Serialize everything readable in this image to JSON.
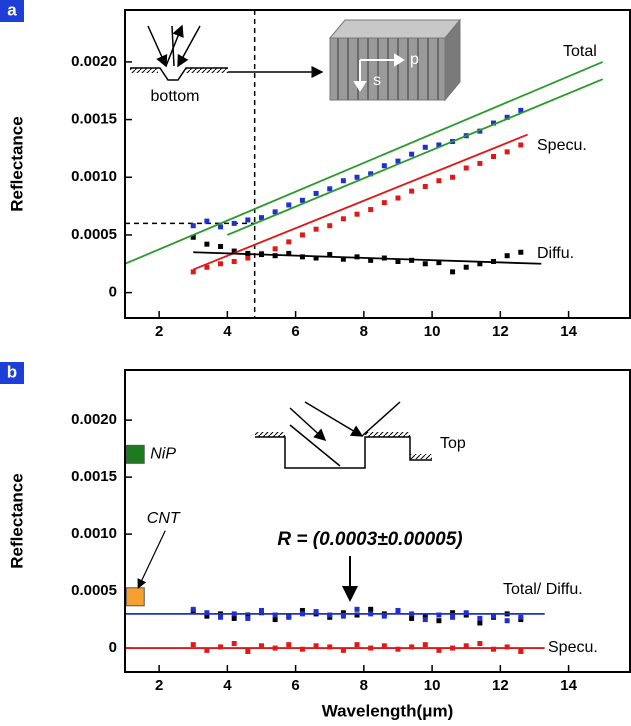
{
  "chart_data": [
    {
      "type": "scatter",
      "panel": "a",
      "ylabel": "Reflectance",
      "xlim": [
        1,
        15.8
      ],
      "ylim": [
        -0.00022,
        0.00245
      ],
      "xticks": [
        2,
        4,
        6,
        8,
        10,
        12,
        14
      ],
      "yticks": [
        0,
        {
          "value": 0.0005,
          "label": "0.0005"
        },
        {
          "value": 0.001,
          "label": "0.0010"
        },
        {
          "value": 0.0015,
          "label": "0.0015"
        },
        {
          "value": 0.002,
          "label": "0.0020"
        }
      ],
      "x": [
        3.0,
        3.4,
        3.8,
        4.2,
        4.6,
        5.0,
        5.4,
        5.8,
        6.2,
        6.6,
        7.0,
        7.4,
        7.8,
        8.2,
        8.6,
        9.0,
        9.4,
        9.8,
        10.2,
        10.6,
        11.0,
        11.4,
        11.8,
        12.2,
        12.6
      ],
      "series": [
        {
          "name": "Total",
          "color": "#1f2fd0",
          "values": [
            0.00058,
            0.00062,
            0.00057,
            0.0006,
            0.00063,
            0.00065,
            0.0007,
            0.00076,
            0.0008,
            0.00086,
            0.0009,
            0.00097,
            0.001,
            0.00103,
            0.0011,
            0.00114,
            0.0012,
            0.00126,
            0.00128,
            0.00131,
            0.00136,
            0.0014,
            0.00147,
            0.00152,
            0.00158
          ]
        },
        {
          "name": "Specu.",
          "color": "#e01818",
          "values": [
            0.00018,
            0.00022,
            0.00025,
            0.00027,
            0.0003,
            0.00034,
            0.00038,
            0.00044,
            0.0005,
            0.00055,
            0.00058,
            0.00064,
            0.00068,
            0.00072,
            0.00078,
            0.00082,
            0.00088,
            0.00092,
            0.00097,
            0.001,
            0.00108,
            0.00112,
            0.00118,
            0.00122,
            0.00128
          ]
        },
        {
          "name": "Diffu.",
          "color": "#000000",
          "values": [
            0.00048,
            0.00042,
            0.0004,
            0.00036,
            0.00034,
            0.00033,
            0.00032,
            0.00034,
            0.00031,
            0.0003,
            0.00033,
            0.00029,
            0.00031,
            0.00028,
            0.0003,
            0.00027,
            0.00028,
            0.00025,
            0.00026,
            0.00018,
            0.00022,
            0.00025,
            0.00027,
            0.00032,
            0.00035
          ]
        }
      ],
      "fits": [
        {
          "color": "#2a9a2a",
          "x": [
            1,
            15
          ],
          "values": [
            0.00025,
            0.002
          ]
        },
        {
          "color": "#2a9a2a",
          "x": [
            4,
            15
          ],
          "values": [
            0.0005,
            0.00185
          ]
        },
        {
          "color": "#e01818",
          "x": [
            3,
            12.8
          ],
          "values": [
            0.0002,
            0.00137
          ]
        },
        {
          "color": "#000000",
          "x": [
            3,
            13.2
          ],
          "values": [
            0.00035,
            0.00025
          ]
        }
      ],
      "guides": {
        "x": 4.8,
        "y": 0.0006
      },
      "annotations": [
        "bottom",
        "s",
        "p"
      ]
    },
    {
      "type": "scatter",
      "panel": "b",
      "ylabel": "Reflectance",
      "xlabel": "Wavelength(μm)",
      "xlim": [
        1,
        15.8
      ],
      "ylim": [
        -0.00021,
        0.00244
      ],
      "xticks": [
        2,
        4,
        6,
        8,
        10,
        12,
        14
      ],
      "yticks": [
        0,
        {
          "value": 0.0005,
          "label": "0.0005"
        },
        {
          "value": 0.001,
          "label": "0.0010"
        },
        {
          "value": 0.0015,
          "label": "0.0015"
        },
        {
          "value": 0.002,
          "label": "0.0020"
        }
      ],
      "x": [
        3.0,
        3.4,
        3.8,
        4.2,
        4.6,
        5.0,
        5.4,
        5.8,
        6.2,
        6.6,
        7.0,
        7.4,
        7.8,
        8.2,
        8.6,
        9.0,
        9.4,
        9.8,
        10.2,
        10.6,
        11.0,
        11.4,
        11.8,
        12.2,
        12.6
      ],
      "series": [
        {
          "name": "Total/ Diffu.",
          "color": "#000000",
          "values": [
            0.00032,
            0.00028,
            0.0003,
            0.00026,
            0.00029,
            0.00031,
            0.00025,
            0.00028,
            0.00033,
            0.0003,
            0.00027,
            0.00031,
            0.00029,
            0.00034,
            0.0003,
            0.00032,
            0.00026,
            0.00028,
            0.00024,
            0.00031,
            0.00029,
            0.00022,
            0.00027,
            0.0003,
            0.00025
          ]
        },
        {
          "color": "#1f2fd0",
          "values": [
            0.00034,
            0.00031,
            0.00027,
            0.0003,
            0.00026,
            0.00033,
            0.00029,
            0.00027,
            0.0003,
            0.00032,
            0.00029,
            0.00028,
            0.00034,
            0.0003,
            0.00028,
            0.00033,
            0.0003,
            0.00025,
            0.00029,
            0.00027,
            0.00031,
            0.00026,
            0.00028,
            0.00024,
            0.00027
          ]
        },
        {
          "name": "Specu.",
          "color": "#e01818",
          "values": [
            3e-05,
            -2e-05,
            1e-05,
            4e-05,
            -3e-05,
            2e-05,
            0,
            3e-05,
            -1e-05,
            2e-05,
            1e-05,
            -2e-05,
            3e-05,
            0,
            2e-05,
            -1e-05,
            1e-05,
            3e-05,
            -2e-05,
            0,
            2e-05,
            4e-05,
            -1e-05,
            1e-05,
            -3e-05
          ]
        }
      ],
      "fits": [
        {
          "color": "#1f2fd0",
          "x": [
            1,
            13.3
          ],
          "values": [
            0.0003,
            0.0003
          ]
        },
        {
          "color": "#e01818",
          "x": [
            1,
            13.3
          ],
          "values": [
            0,
            0
          ]
        }
      ],
      "references": [
        {
          "name": "NiP",
          "color": "#1e7a1e",
          "x": 1.3,
          "value": 0.0017
        },
        {
          "name": "CNT",
          "color": "#f5a030",
          "x": 1.3,
          "value": 0.00045
        }
      ],
      "annotations": [
        "Top",
        "R = (0.0003±0.00005)"
      ]
    }
  ]
}
